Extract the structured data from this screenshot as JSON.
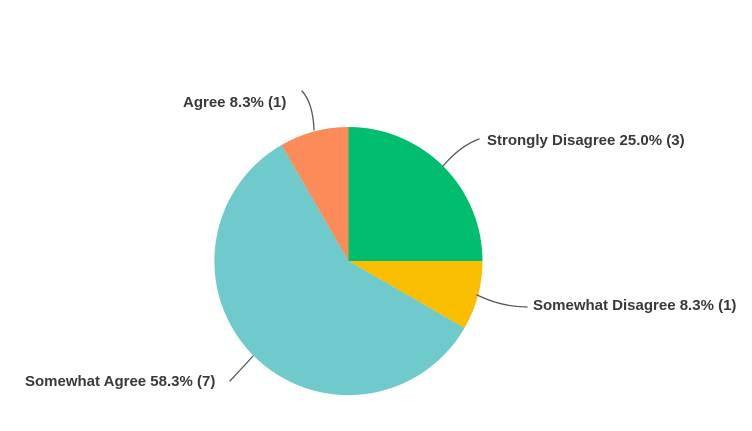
{
  "chart_data": {
    "type": "pie",
    "title": "",
    "direction": "clockwise",
    "start_angle_deg": 0,
    "legend_position": "none",
    "background": "#FFFFFF",
    "label_text_color": "#37393B",
    "leader_line_color": "#55575B",
    "slices": [
      {
        "label": "Strongly Disagree",
        "percent": 25.0,
        "count": 3,
        "color": "#00BE6E",
        "display": "Strongly Disagree 25.0% (3)"
      },
      {
        "label": "Somewhat Disagree",
        "percent": 8.3,
        "count": 1,
        "color": "#F9BE00",
        "display": "Somewhat Disagree 8.3% (1)"
      },
      {
        "label": "Somewhat Agree",
        "percent": 58.3,
        "count": 7,
        "color": "#6FCBCB",
        "display": "Somewhat Agree 58.3% (7)"
      },
      {
        "label": "Agree",
        "percent": 8.3,
        "count": 1,
        "color": "#FB8B59",
        "display": "Agree 8.3% (1)"
      }
    ]
  }
}
